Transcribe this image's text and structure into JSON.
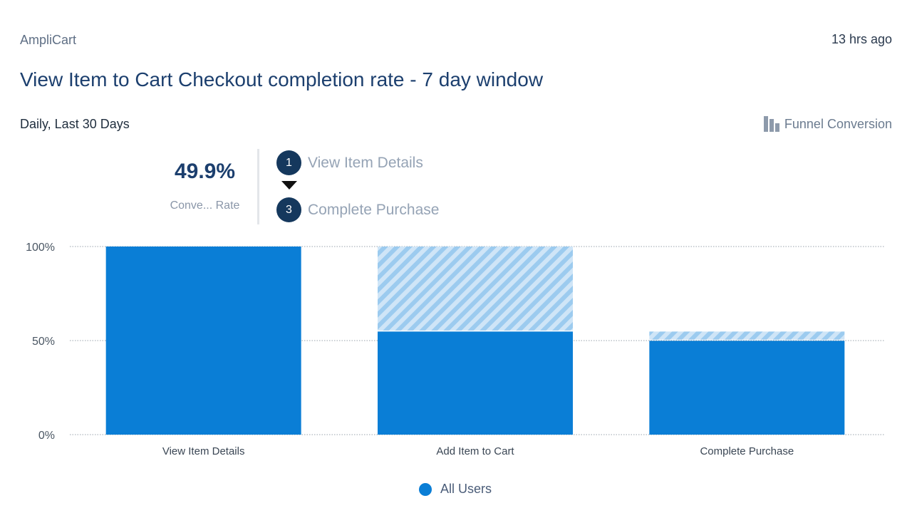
{
  "header": {
    "app_name": "AmpliCart",
    "timestamp": "13 hrs ago",
    "title": "View Item to Cart Checkout completion rate - 7 day window",
    "period": "Daily, Last 30 Days",
    "chart_type_label": "Funnel Conversion"
  },
  "summary": {
    "value": "49.9%",
    "label": "Conve... Rate"
  },
  "steps": [
    {
      "number": "1",
      "label": "View Item Details"
    },
    {
      "number": "3",
      "label": "Complete Purchase"
    }
  ],
  "legend": {
    "label": "All Users"
  },
  "colors": {
    "bar": "#0a7ed6",
    "dropoff": "#a8d1f1",
    "accent": "#15385d"
  },
  "chart_data": {
    "type": "bar",
    "title": "View Item to Cart Checkout completion rate - 7 day window",
    "categories": [
      "View Item Details",
      "Add Item to Cart",
      "Complete Purchase"
    ],
    "series": [
      {
        "name": "All Users",
        "values": [
          100,
          54.8,
          49.9
        ]
      }
    ],
    "dropoff_from": [
      null,
      100,
      54.8
    ],
    "y_ticks": [
      "100%",
      "50%",
      "0%"
    ],
    "y_tick_values": [
      100,
      50,
      0
    ],
    "ylim": [
      0,
      100
    ],
    "xlabel": "",
    "ylabel": "",
    "grid": true,
    "legend_position": "bottom"
  }
}
